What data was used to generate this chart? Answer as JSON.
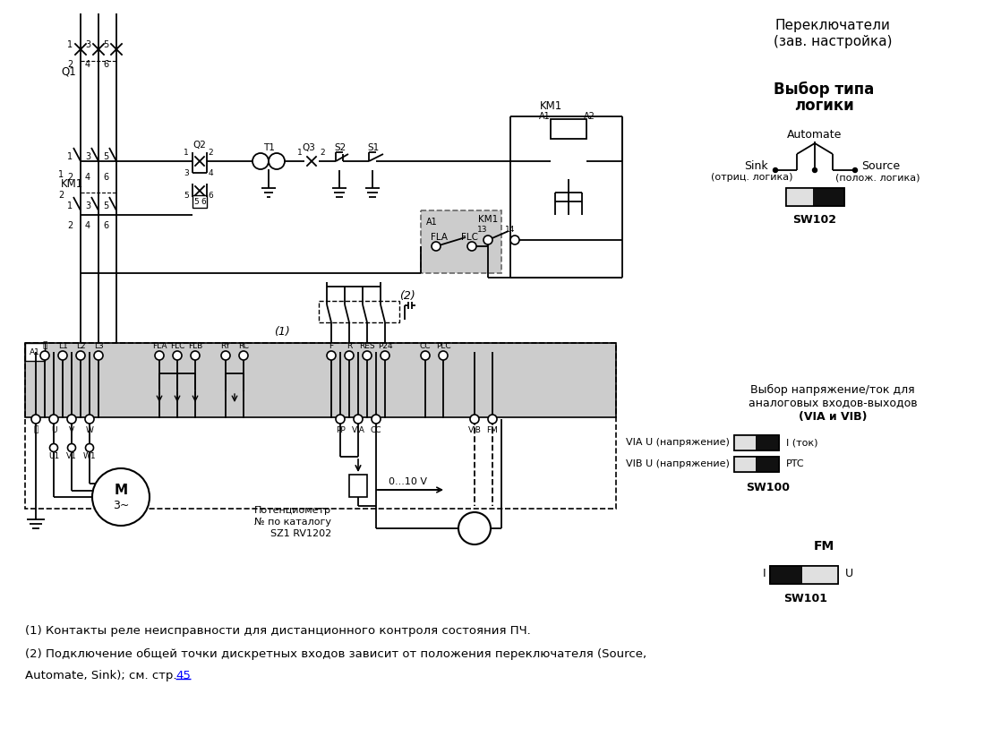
{
  "bg_color": "#ffffff",
  "fig_width": 10.99,
  "fig_height": 8.23,
  "note1": "(1) Контакты реле неисправности для дистанционного контроля состояния ПЧ.",
  "note2_part1": "(2) Подключение общей точки дискретных входов зависит от положения переключателя (Source,",
  "note2_part2": "Automate, Sink); см. стр. ",
  "note2_link": "45",
  "top_right1": "Переключатели",
  "top_right2": "(зав. настройка)",
  "logic_title1": "Выбор типа",
  "logic_title2": "логики",
  "automate_lbl": "Automate",
  "sink_lbl": "Sink",
  "sink_sub": "(отриц. логика)",
  "source_lbl": "Source",
  "source_sub": "(полож. логика)",
  "sw102": "SW102",
  "analog_line1": "Выбор напряжение/ток для",
  "analog_line2": "аналоговых входов-выходов",
  "analog_line3": "(VIA и VIB)",
  "via_u": "VIA U (напряжение)",
  "vib_u": "VIB U (напряжение)",
  "i_tok": "I (ток)",
  "ptc": "PTC",
  "sw100": "SW100",
  "fm_title": "FM",
  "i_lbl": "I",
  "u_lbl": "U",
  "sw101": "SW101",
  "pot_line1": "Потенциометр",
  "pot_line2": "№ по каталогу",
  "pot_line3": "SZ1 RV1202",
  "volt_lbl": "0...10 V",
  "q1_lbl": "Q1",
  "km1_lbl": "KM1",
  "q2_lbl": "Q2",
  "t1_lbl": "T1",
  "q3_lbl": "Q3",
  "s2_lbl": "S2",
  "s1_lbl": "S1",
  "label_1_italic": "(1)",
  "label_2_italic": "(2)"
}
